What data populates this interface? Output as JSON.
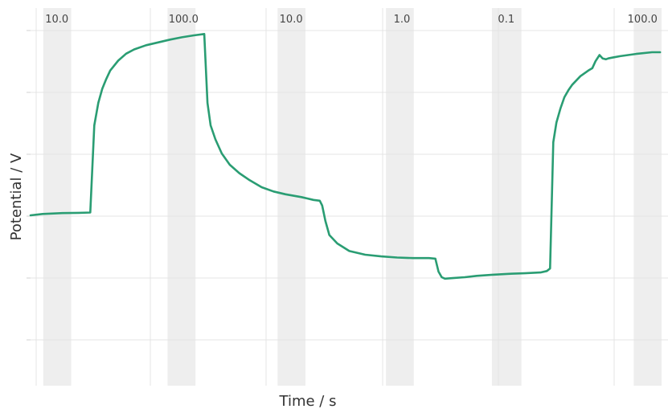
{
  "chart_data": {
    "type": "line",
    "title": "",
    "xlabel": "Time / s",
    "ylabel": "Potential / V",
    "xlim": [
      0,
      800
    ],
    "ylim": [
      0,
      100
    ],
    "grid": true,
    "y_tick_labels_visible": false,
    "x_tick_labels_visible": false,
    "step_labels": [
      {
        "label": "10.0",
        "x": 33
      },
      {
        "label": "100.0",
        "x": 192
      },
      {
        "label": "10.0",
        "x": 327
      },
      {
        "label": "1.0",
        "x": 466
      },
      {
        "label": "0.1",
        "x": 597
      },
      {
        "label": "100.0",
        "x": 768
      }
    ],
    "shaded_bands": [
      {
        "x0": 16,
        "x1": 51
      },
      {
        "x0": 172,
        "x1": 207
      },
      {
        "x0": 310,
        "x1": 345
      },
      {
        "x0": 446,
        "x1": 481
      },
      {
        "x0": 579,
        "x1": 616
      },
      {
        "x0": 757,
        "x1": 792
      }
    ],
    "series": [
      {
        "color": "#2a9d73",
        "x": [
          0,
          15,
          40,
          60,
          75,
          80,
          85,
          90,
          95,
          100,
          110,
          120,
          130,
          145,
          160,
          175,
          190,
          205,
          218,
          222,
          226,
          232,
          240,
          250,
          262,
          275,
          290,
          305,
          320,
          340,
          355,
          363,
          366,
          370,
          375,
          385,
          400,
          420,
          440,
          460,
          480,
          500,
          508,
          512,
          516,
          520,
          530,
          545,
          560,
          580,
          600,
          620,
          640,
          648,
          652,
          656,
          660,
          665,
          670,
          675,
          680,
          690,
          700,
          705,
          709,
          714,
          718,
          722,
          725,
          730,
          740,
          760,
          780,
          790
        ],
        "y": [
          40,
          40.5,
          40.8,
          40.9,
          41,
          72,
          80,
          85,
          88.5,
          91.5,
          95,
          97.5,
          99,
          100.5,
          101.5,
          102.5,
          103.3,
          104,
          104.5,
          80,
          72,
          67,
          62,
          58,
          55,
          52.5,
          50,
          48.5,
          47.5,
          46.5,
          45.5,
          45.2,
          43.5,
          38,
          33,
          30,
          27.3,
          26,
          25.4,
          25,
          24.8,
          24.8,
          24.6,
          20,
          18,
          17.5,
          17.7,
          18,
          18.5,
          18.9,
          19.2,
          19.4,
          19.7,
          20.2,
          21.1,
          66,
          73,
          78,
          82,
          84.5,
          86.5,
          89.5,
          91.5,
          92.3,
          94.8,
          97,
          95.8,
          95.5,
          95.8,
          96.1,
          96.6,
          97.4,
          98,
          98
        ]
      }
    ]
  }
}
